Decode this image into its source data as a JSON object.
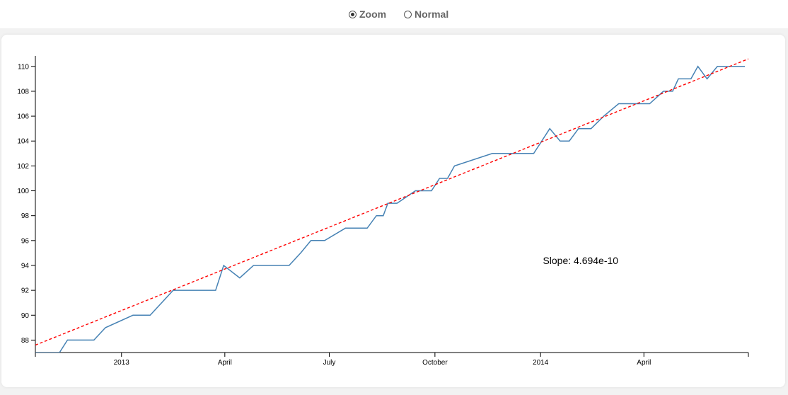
{
  "controls": {
    "zoom_label": "Zoom",
    "normal_label": "Normal",
    "selected": "zoom"
  },
  "chart_data": {
    "type": "line",
    "title": "",
    "xlabel": "",
    "ylabel": "",
    "xlim": [
      "2012-10-18",
      "2014-07-01"
    ],
    "ylim": [
      87,
      110.5
    ],
    "grid": false,
    "y_ticks": [
      88,
      90,
      92,
      94,
      96,
      98,
      100,
      102,
      104,
      106,
      108,
      110
    ],
    "x_ticks": [
      {
        "date": "2013-01-01",
        "label": "2013"
      },
      {
        "date": "2013-04-01",
        "label": "April"
      },
      {
        "date": "2013-07-01",
        "label": "July"
      },
      {
        "date": "2013-10-01",
        "label": "October"
      },
      {
        "date": "2014-01-01",
        "label": "2014"
      },
      {
        "date": "2014-04-01",
        "label": "April"
      }
    ],
    "series": [
      {
        "color": "#4682b4",
        "x": [
          "2012-10-18",
          "2012-11-08",
          "2012-11-15",
          "2012-12-08",
          "2012-12-18",
          "2013-01-11",
          "2013-01-26",
          "2013-02-15",
          "2013-02-22",
          "2013-03-24",
          "2013-03-31",
          "2013-04-14",
          "2013-04-26",
          "2013-05-06",
          "2013-05-27",
          "2013-06-06",
          "2013-06-15",
          "2013-06-27",
          "2013-07-15",
          "2013-07-28",
          "2013-08-03",
          "2013-08-11",
          "2013-08-17",
          "2013-08-21",
          "2013-08-29",
          "2013-09-14",
          "2013-09-28",
          "2013-10-05",
          "2013-10-12",
          "2013-10-18",
          "2013-11-20",
          "2013-12-22",
          "2013-12-26",
          "2014-01-09",
          "2014-01-18",
          "2014-01-26",
          "2014-02-03",
          "2014-02-14",
          "2014-02-25",
          "2014-03-10",
          "2014-03-27",
          "2014-03-29",
          "2014-04-06",
          "2014-04-18",
          "2014-04-26",
          "2014-05-01",
          "2014-05-12",
          "2014-05-18",
          "2014-05-26",
          "2014-06-04",
          "2014-06-28"
        ],
        "y": [
          87,
          87,
          88,
          88,
          89,
          90,
          90,
          92,
          92,
          92,
          94,
          93,
          94,
          94,
          94,
          95,
          96,
          96,
          97,
          97,
          97,
          98,
          98,
          99,
          99,
          100,
          100,
          101,
          101,
          102,
          103,
          103,
          103,
          105,
          104,
          104,
          105,
          105,
          106,
          107,
          107,
          107,
          107,
          108,
          108,
          109,
          109,
          110,
          109,
          110,
          110
        ]
      },
      {
        "color": "#ff0000",
        "dashed": true,
        "x": [
          "2012-10-18",
          "2014-07-01"
        ],
        "y": [
          87.6,
          110.6
        ]
      }
    ],
    "annotations": [
      {
        "text": "Slope: 4.694e-10",
        "date": "2014-01-03",
        "value": 94
      }
    ]
  }
}
